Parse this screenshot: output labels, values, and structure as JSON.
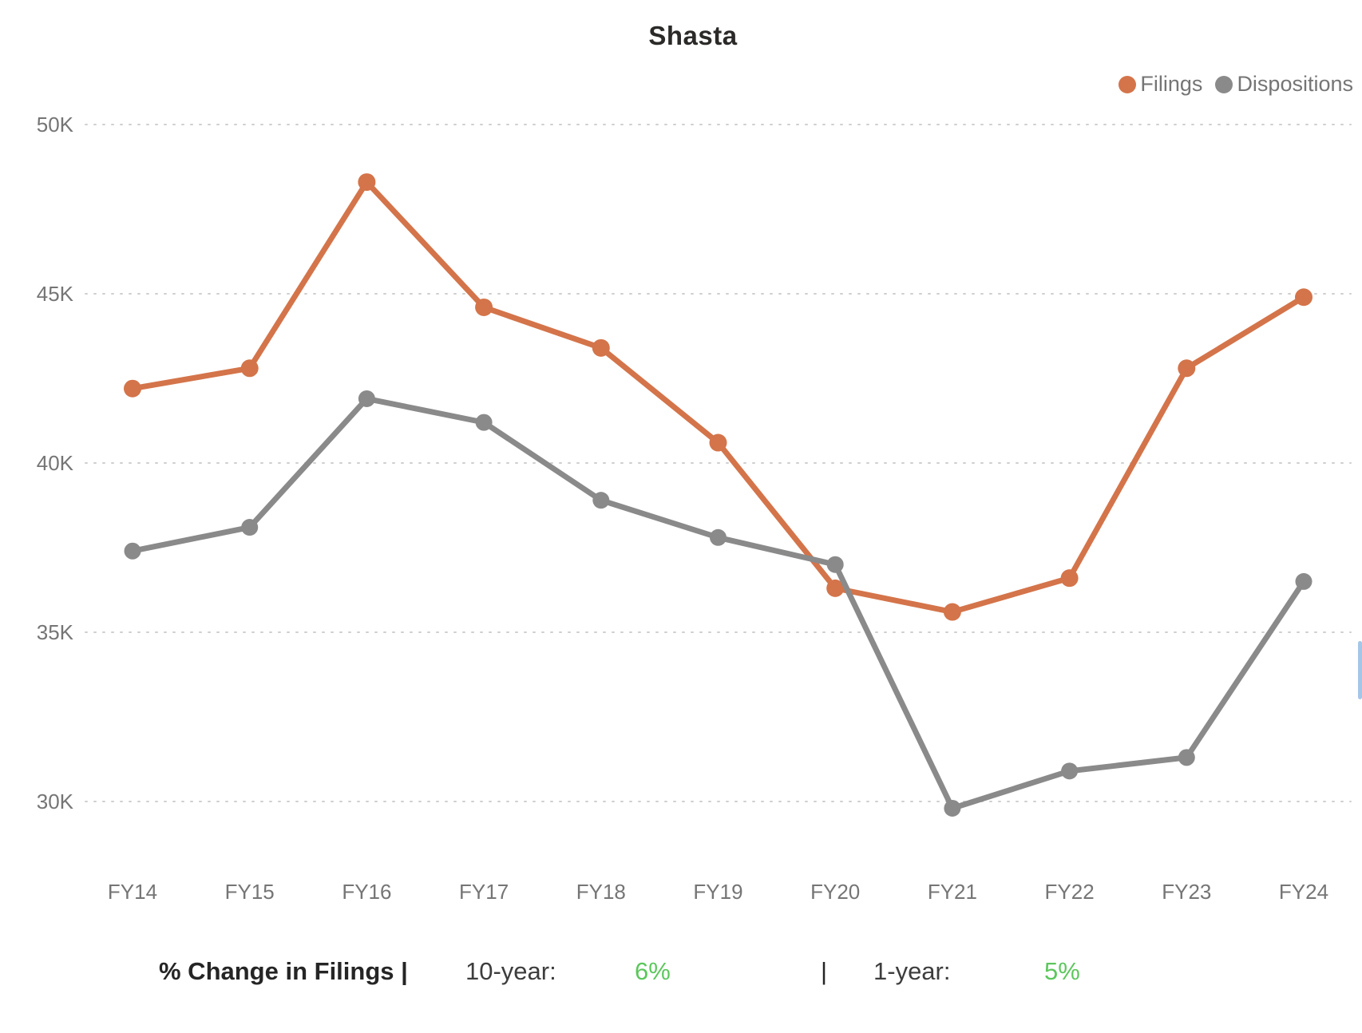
{
  "chart": {
    "title": "Shasta",
    "legend": {
      "filings": "Filings",
      "dispositions": "Dispositions"
    }
  },
  "chart_data": {
    "type": "line",
    "title": "Shasta",
    "categories": [
      "FY14",
      "FY15",
      "FY16",
      "FY17",
      "FY18",
      "FY19",
      "FY20",
      "FY21",
      "FY22",
      "FY23",
      "FY24"
    ],
    "series": [
      {
        "name": "Filings",
        "color": "#d4744a",
        "values": [
          42200,
          42800,
          48300,
          44600,
          43400,
          40600,
          36300,
          35600,
          36600,
          42800,
          44900
        ]
      },
      {
        "name": "Dispositions",
        "color": "#8a8a8a",
        "values": [
          37400,
          38100,
          41900,
          41200,
          38900,
          37800,
          37000,
          29800,
          30900,
          31300,
          36500
        ]
      }
    ],
    "y_ticks": [
      30000,
      35000,
      40000,
      45000,
      50000
    ],
    "y_tick_labels": [
      "30K",
      "35K",
      "40K",
      "45K",
      "50K"
    ],
    "ylim": [
      28000,
      51500
    ],
    "xlabel": "",
    "ylabel": "",
    "grid": "horizontal-dotted",
    "legend_position": "top-right"
  },
  "stats": {
    "label": "% Change in Filings |",
    "ten_year_label": "10-year:",
    "ten_year_value": "6%",
    "separator": "|",
    "one_year_label": "1-year:",
    "one_year_value": "5%"
  },
  "colors": {
    "filings": "#d4744a",
    "dispositions": "#8a8a8a",
    "axis_text": "#757575",
    "title_text": "#2b2a29",
    "gridline": "#cfcfcf",
    "positive_green": "#5cc75c",
    "scrollbar": "#a5c6e6"
  }
}
